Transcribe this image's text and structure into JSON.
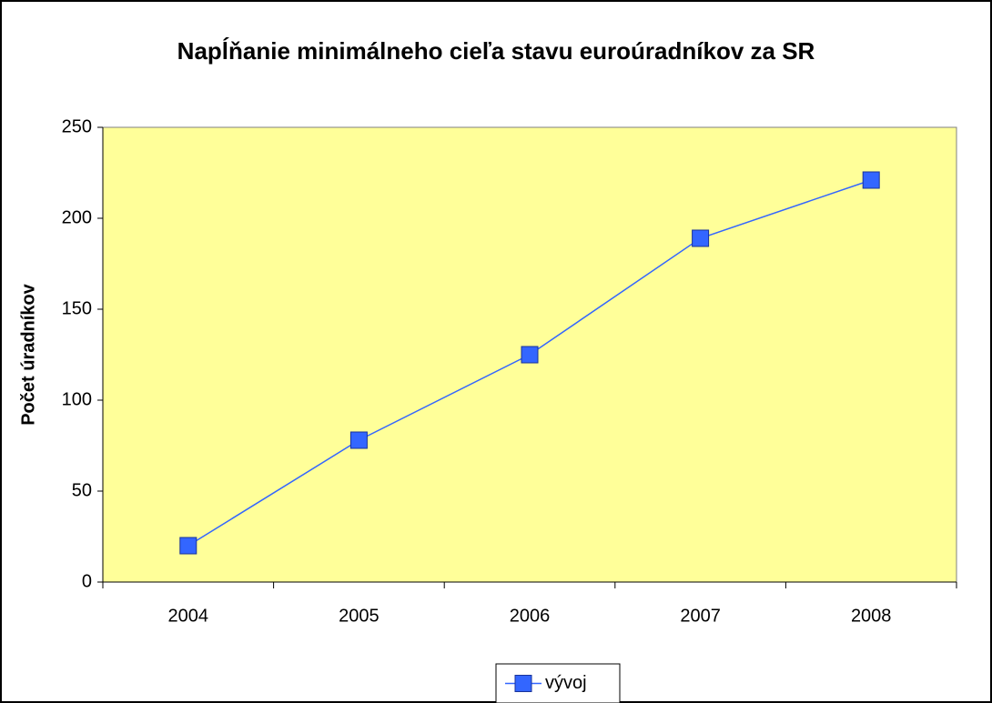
{
  "chart_data": {
    "type": "line",
    "title": "Napĺňanie minimálneho cieľa stavu euroúradníkov za SR",
    "ylabel": "Počet úradníkov",
    "categories": [
      "2004",
      "2005",
      "2006",
      "2007",
      "2008"
    ],
    "series": [
      {
        "name": "vývoj",
        "color": "#3366ff",
        "values": [
          20,
          78,
          125,
          189,
          221
        ]
      }
    ],
    "ylim": [
      0,
      250
    ],
    "yticks": [
      0,
      50,
      100,
      150,
      200,
      250
    ],
    "grid": false,
    "plot_background": "#ffff99",
    "legend": "bottom"
  }
}
